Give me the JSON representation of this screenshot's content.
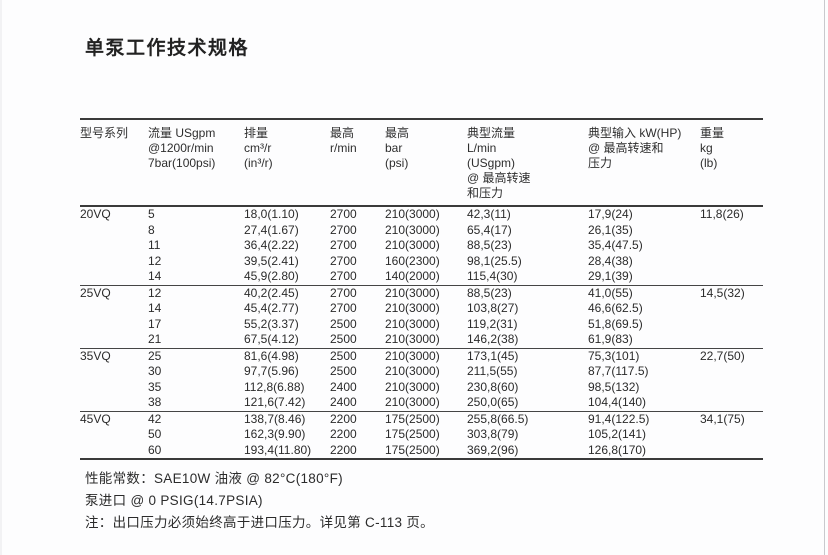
{
  "title": "单泵工作技术规格",
  "table": {
    "headers": [
      {
        "id": "model",
        "text": "型号系列"
      },
      {
        "id": "flow",
        "text": "流量 USgpm\n@1200r/min\n7bar(100psi)"
      },
      {
        "id": "displacement",
        "text": "排量\ncm³/r\n(in³/r)"
      },
      {
        "id": "max_speed",
        "text": "最高\nr/min"
      },
      {
        "id": "max_pressure",
        "text": "最高\nbar\n(psi)"
      },
      {
        "id": "typical_flow",
        "text": "典型流量\nL/min\n(USgpm)\n@ 最高转速\n和压力"
      },
      {
        "id": "typical_input",
        "text": "典型输入 kW(HP)\n@ 最高转速和\n压力"
      },
      {
        "id": "weight",
        "text": "重量\nkg\n(lb)"
      }
    ],
    "groups": [
      {
        "model": "20VQ",
        "weight": "11,8(26)",
        "rows": [
          [
            "5",
            "18,0(1.10)",
            "2700",
            "210(3000)",
            "42,3(11)",
            "17,9(24)"
          ],
          [
            "8",
            "27,4(1.67)",
            "2700",
            "210(3000)",
            "65,4(17)",
            "26,1(35)"
          ],
          [
            "11",
            "36,4(2.22)",
            "2700",
            "210(3000)",
            "88,5(23)",
            "35,4(47.5)"
          ],
          [
            "12",
            "39,5(2.41)",
            "2700",
            "160(2300)",
            "98,1(25.5)",
            "28,4(38)"
          ],
          [
            "14",
            "45,9(2.80)",
            "2700",
            "140(2000)",
            "115,4(30)",
            "29,1(39)"
          ]
        ]
      },
      {
        "model": "25VQ",
        "weight": "14,5(32)",
        "rows": [
          [
            "12",
            "40,2(2.45)",
            "2700",
            "210(3000)",
            "88,5(23)",
            "41,0(55)"
          ],
          [
            "14",
            "45,4(2.77)",
            "2700",
            "210(3000)",
            "103,8(27)",
            "46,6(62.5)"
          ],
          [
            "17",
            "55,2(3.37)",
            "2500",
            "210(3000)",
            "119,2(31)",
            "51,8(69.5)"
          ],
          [
            "21",
            "67,5(4.12)",
            "2500",
            "210(3000)",
            "146,2(38)",
            "61,9(83)"
          ]
        ]
      },
      {
        "model": "35VQ",
        "weight": "22,7(50)",
        "rows": [
          [
            "25",
            "81,6(4.98)",
            "2500",
            "210(3000)",
            "173,1(45)",
            "75,3(101)"
          ],
          [
            "30",
            "97,7(5.96)",
            "2500",
            "210(3000)",
            "211,5(55)",
            "87,7(117.5)"
          ],
          [
            "35",
            "112,8(6.88)",
            "2400",
            "210(3000)",
            "230,8(60)",
            "98,5(132)"
          ],
          [
            "38",
            "121,6(7.42)",
            "2400",
            "210(3000)",
            "250,0(65)",
            "104,4(140)"
          ]
        ]
      },
      {
        "model": "45VQ",
        "weight": "34,1(75)",
        "rows": [
          [
            "42",
            "138,7(8.46)",
            "2200",
            "175(2500)",
            "255,8(66.5)",
            "91,4(122.5)"
          ],
          [
            "50",
            "162,3(9.90)",
            "2200",
            "175(2500)",
            "303,8(79)",
            "105,2(141)"
          ],
          [
            "60",
            "193,4(11.80)",
            "2200",
            "175(2500)",
            "369,2(96)",
            "126,8(170)"
          ]
        ]
      }
    ]
  },
  "footnotes": [
    "性能常数：SAE10W 油液 @ 82°C(180°F)",
    "泵进口 @ 0 PSIG(14.7PSIA)",
    "注：出口压力必须始终高于进口压力。详见第 C-113 页。"
  ]
}
